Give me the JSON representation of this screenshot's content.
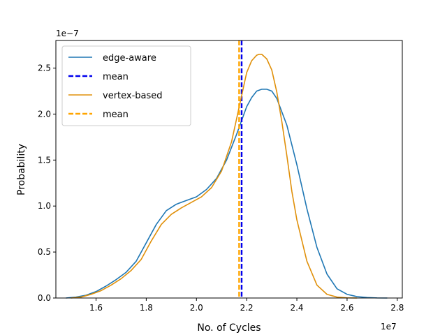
{
  "chart_data": {
    "type": "line",
    "xlabel": "No. of Cycles",
    "ylabel": "Probability",
    "x_offset_label": "1e7",
    "y_offset_label": "1e−7",
    "xlim": [
      1.44,
      2.82
    ],
    "ylim": [
      0.0,
      2.8
    ],
    "xticks": [
      1.6,
      1.8,
      2.0,
      2.2,
      2.4,
      2.6,
      2.8
    ],
    "xtick_labels": [
      "1.6",
      "1.8",
      "2.0",
      "2.2",
      "2.4",
      "2.6",
      "2.8"
    ],
    "yticks": [
      0.0,
      0.5,
      1.0,
      1.5,
      2.0,
      2.5
    ],
    "ytick_labels": [
      "0.0",
      "0.5",
      "1.0",
      "1.5",
      "2.0",
      "2.5"
    ],
    "grid": false,
    "legend_position": "top-left",
    "series": [
      {
        "name": "edge-aware",
        "kind": "density",
        "color": "#1f77b4",
        "x": [
          1.48,
          1.52,
          1.56,
          1.6,
          1.64,
          1.68,
          1.72,
          1.76,
          1.8,
          1.84,
          1.88,
          1.92,
          1.96,
          2.0,
          2.04,
          2.08,
          2.12,
          2.16,
          2.2,
          2.22,
          2.24,
          2.26,
          2.28,
          2.3,
          2.32,
          2.36,
          2.4,
          2.44,
          2.48,
          2.52,
          2.56,
          2.6,
          2.64,
          2.68,
          2.72,
          2.76
        ],
        "y": [
          0.0,
          0.01,
          0.03,
          0.07,
          0.13,
          0.2,
          0.28,
          0.4,
          0.6,
          0.8,
          0.95,
          1.02,
          1.06,
          1.1,
          1.18,
          1.3,
          1.5,
          1.78,
          2.08,
          2.18,
          2.25,
          2.27,
          2.27,
          2.25,
          2.17,
          1.88,
          1.45,
          0.97,
          0.55,
          0.26,
          0.1,
          0.04,
          0.015,
          0.005,
          0.001,
          0.0
        ]
      },
      {
        "name": "mean",
        "kind": "vline",
        "color": "#0000ee",
        "x": 2.18
      },
      {
        "name": "vertex-based",
        "kind": "density",
        "color": "#e0900a",
        "x": [
          1.5,
          1.54,
          1.58,
          1.62,
          1.66,
          1.7,
          1.74,
          1.78,
          1.82,
          1.86,
          1.9,
          1.94,
          1.98,
          2.02,
          2.06,
          2.1,
          2.14,
          2.16,
          2.18,
          2.2,
          2.22,
          2.24,
          2.25,
          2.26,
          2.28,
          2.3,
          2.32,
          2.34,
          2.36,
          2.38,
          2.4,
          2.44,
          2.48,
          2.52,
          2.56,
          2.6,
          2.64
        ],
        "y": [
          0.0,
          0.01,
          0.04,
          0.08,
          0.14,
          0.21,
          0.3,
          0.42,
          0.62,
          0.8,
          0.91,
          0.98,
          1.04,
          1.1,
          1.2,
          1.38,
          1.7,
          1.95,
          2.2,
          2.45,
          2.58,
          2.64,
          2.65,
          2.65,
          2.6,
          2.48,
          2.24,
          1.92,
          1.55,
          1.16,
          0.85,
          0.4,
          0.14,
          0.04,
          0.01,
          0.002,
          0.0
        ]
      },
      {
        "name": "mean",
        "kind": "vline",
        "color": "#ffa500",
        "x": 2.17
      }
    ]
  }
}
